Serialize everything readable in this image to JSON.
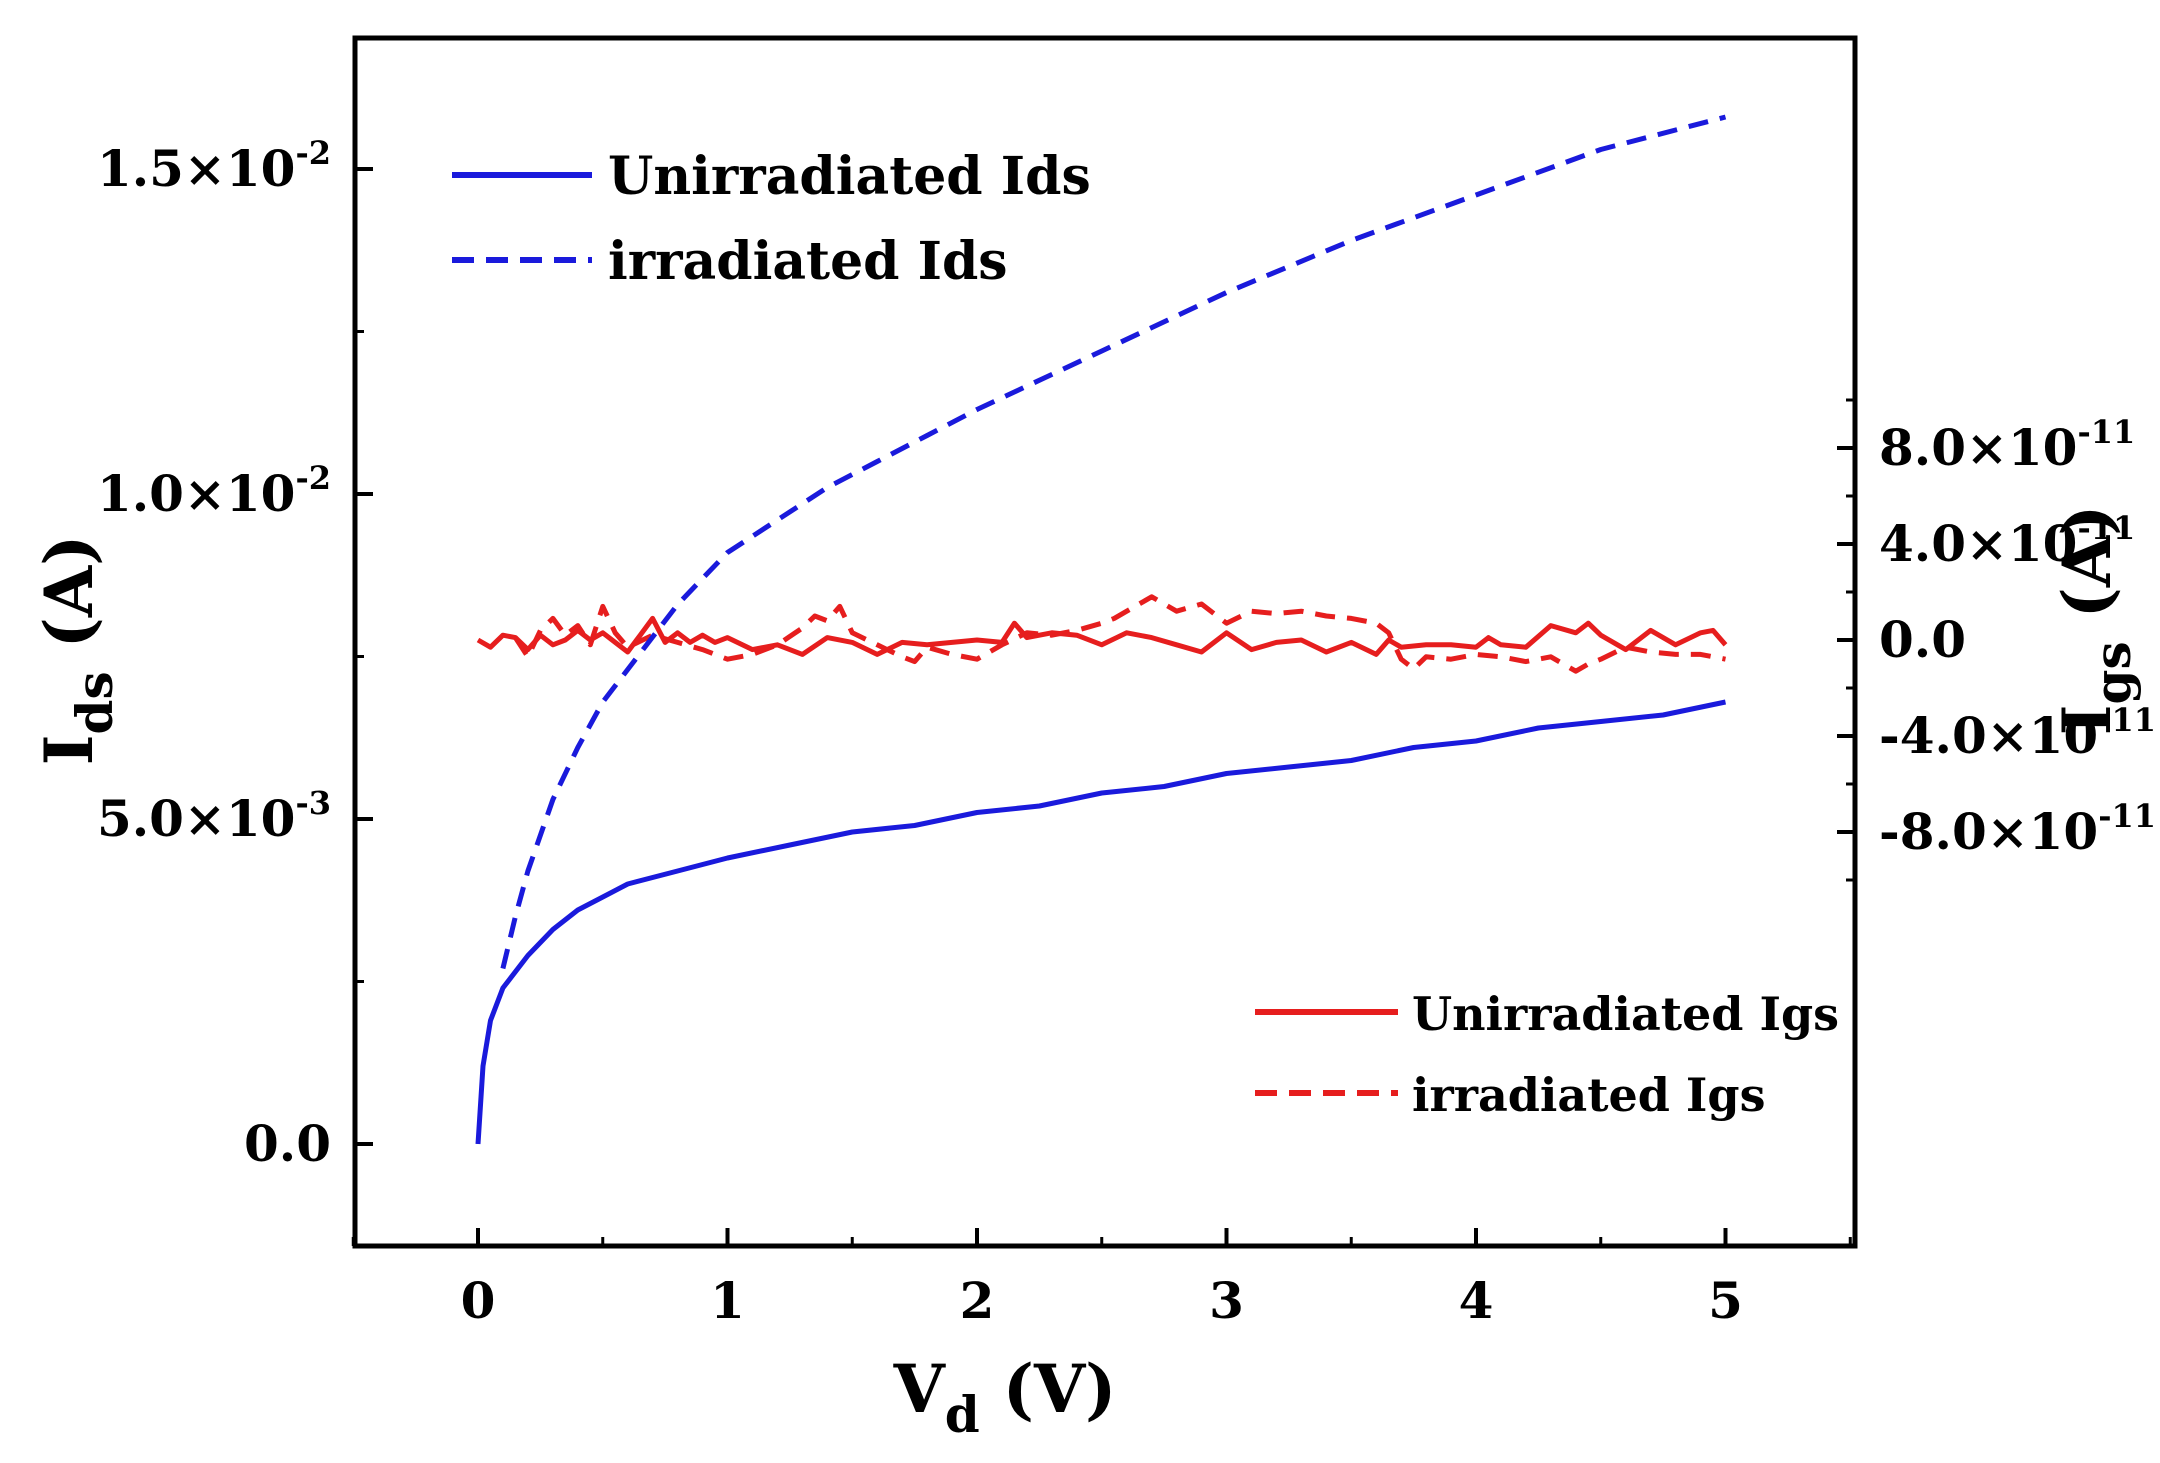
{
  "chart_data": {
    "type": "line",
    "xlabel": {
      "main": "V",
      "sub": "d",
      "unit": " (V)"
    },
    "ylabel_left": {
      "main": "I",
      "sub": "ds",
      "unit": " (A)"
    },
    "ylabel_right": {
      "main": "I",
      "sub": "gs",
      "unit": " (A)"
    },
    "xlim": [
      -0.5,
      5.5
    ],
    "ylim_left": [
      -0.0015,
      0.0169
    ],
    "ylim_right": [
      -1e-10,
      1.1e-10
    ],
    "grid": false,
    "x_ticks": [
      {
        "value": 0,
        "label": "0"
      },
      {
        "value": 1,
        "label": "1"
      },
      {
        "value": 2,
        "label": "2"
      },
      {
        "value": 3,
        "label": "3"
      },
      {
        "value": 4,
        "label": "4"
      },
      {
        "value": 5,
        "label": "5"
      }
    ],
    "y_left_ticks": [
      {
        "value": 0,
        "mant": "0.0",
        "exp": ""
      },
      {
        "value": 0.005,
        "mant": "5.0×10",
        "exp": "-3"
      },
      {
        "value": 0.01,
        "mant": "1.0×10",
        "exp": "-2"
      },
      {
        "value": 0.015,
        "mant": "1.5×10",
        "exp": "-2"
      }
    ],
    "y_right_ticks": [
      {
        "value": -8e-11,
        "mant": "-8.0×10",
        "exp": "-11"
      },
      {
        "value": -4e-11,
        "mant": "-4.0×10",
        "exp": "-11"
      },
      {
        "value": 0,
        "mant": "0.0",
        "exp": ""
      },
      {
        "value": 4e-11,
        "mant": "4.0×10",
        "exp": "-11"
      },
      {
        "value": 8e-11,
        "mant": "8.0×10",
        "exp": "-11"
      }
    ],
    "legend_top_left": [
      "Unirradiated Ids",
      "irradiated Ids"
    ],
    "legend_bottom_right": [
      "Unirradiated Igs",
      "irradiated Igs"
    ],
    "series": [
      {
        "name": "Unirradiated Ids",
        "axis": "left",
        "color": "#1a1adc",
        "dash": "solid",
        "x": [
          0,
          0.02,
          0.05,
          0.1,
          0.2,
          0.3,
          0.4,
          0.5,
          0.6,
          0.8,
          1.0,
          1.25,
          1.5,
          1.75,
          2.0,
          2.25,
          2.5,
          2.75,
          3.0,
          3.25,
          3.5,
          3.75,
          4.0,
          4.25,
          4.5,
          4.75,
          5.0
        ],
        "y": [
          0,
          0.0012,
          0.0019,
          0.0024,
          0.0029,
          0.0033,
          0.0036,
          0.0038,
          0.004,
          0.0042,
          0.0044,
          0.0046,
          0.0048,
          0.0049,
          0.0051,
          0.0052,
          0.0054,
          0.0055,
          0.0057,
          0.0058,
          0.0059,
          0.0061,
          0.0062,
          0.0064,
          0.0065,
          0.0066,
          0.0068
        ]
      },
      {
        "name": "irradiated Ids",
        "axis": "left",
        "color": "#1a1adc",
        "dash": "dashed",
        "x": [
          0.1,
          0.15,
          0.2,
          0.3,
          0.4,
          0.5,
          0.6,
          0.7,
          0.8,
          0.9,
          1.0,
          1.2,
          1.4,
          1.6,
          1.8,
          2.0,
          2.5,
          3.0,
          3.5,
          4.0,
          4.5,
          5.0
        ],
        "y": [
          0.0027,
          0.0035,
          0.0042,
          0.0053,
          0.0061,
          0.0068,
          0.0073,
          0.0078,
          0.0083,
          0.0087,
          0.0091,
          0.0096,
          0.0101,
          0.0105,
          0.0109,
          0.0113,
          0.0122,
          0.0131,
          0.0139,
          0.0146,
          0.0153,
          0.0158
        ]
      },
      {
        "name": "Unirradiated Igs",
        "axis": "right",
        "color": "#e61e1e",
        "dash": "solid",
        "x": [
          0,
          0.05,
          0.1,
          0.15,
          0.2,
          0.25,
          0.3,
          0.35,
          0.4,
          0.45,
          0.5,
          0.55,
          0.6,
          0.65,
          0.7,
          0.75,
          0.8,
          0.85,
          0.9,
          0.95,
          1.0,
          1.1,
          1.2,
          1.3,
          1.4,
          1.5,
          1.6,
          1.7,
          1.8,
          1.9,
          2.0,
          2.1,
          2.15,
          2.2,
          2.3,
          2.4,
          2.5,
          2.6,
          2.7,
          2.8,
          2.9,
          3.0,
          3.1,
          3.2,
          3.3,
          3.4,
          3.5,
          3.6,
          3.65,
          3.7,
          3.8,
          3.9,
          4.0,
          4.05,
          4.1,
          4.2,
          4.3,
          4.4,
          4.45,
          4.5,
          4.6,
          4.7,
          4.8,
          4.9,
          4.95,
          5.0
        ],
        "y": [
          0,
          -3e-12,
          2e-12,
          1e-12,
          -4e-12,
          2e-12,
          -2e-12,
          0,
          4e-12,
          0,
          3e-12,
          -1e-12,
          -5e-12,
          2e-12,
          9e-12,
          -1e-12,
          3e-12,
          -1e-12,
          2e-12,
          -1e-12,
          1e-12,
          -4e-12,
          -2e-12,
          -6e-12,
          1e-12,
          -1e-12,
          -6e-12,
          -1e-12,
          -2e-12,
          -1e-12,
          0,
          -1e-12,
          7e-12,
          1e-12,
          3e-12,
          2e-12,
          -2e-12,
          3e-12,
          1e-12,
          -2e-12,
          -5e-12,
          3e-12,
          -4e-12,
          -1e-12,
          0,
          -5e-12,
          -1e-12,
          -6e-12,
          0,
          -3e-12,
          -2e-12,
          -2e-12,
          -3e-12,
          1e-12,
          -2e-12,
          -3e-12,
          6e-12,
          3e-12,
          7e-12,
          2e-12,
          -4e-12,
          4e-12,
          -2e-12,
          3e-12,
          4e-12,
          -2e-12
        ]
      },
      {
        "name": "irradiated Igs",
        "axis": "right",
        "color": "#e61e1e",
        "dash": "dashed",
        "x": [
          0.15,
          0.2,
          0.25,
          0.3,
          0.35,
          0.4,
          0.45,
          0.5,
          0.55,
          0.6,
          0.7,
          0.8,
          0.9,
          1.0,
          1.1,
          1.2,
          1.3,
          1.35,
          1.4,
          1.45,
          1.5,
          1.6,
          1.7,
          1.75,
          1.8,
          1.9,
          2.0,
          2.1,
          2.2,
          2.3,
          2.4,
          2.5,
          2.55,
          2.6,
          2.7,
          2.8,
          2.9,
          3.0,
          3.1,
          3.2,
          3.3,
          3.4,
          3.5,
          3.6,
          3.65,
          3.7,
          3.75,
          3.8,
          3.9,
          4.0,
          4.1,
          4.2,
          4.3,
          4.4,
          4.45,
          4.5,
          4.6,
          4.7,
          4.8,
          4.9,
          5.0
        ],
        "y": [
          1e-12,
          -7e-12,
          4e-12,
          9e-12,
          2e-12,
          6e-12,
          -2e-12,
          1.4e-11,
          3e-12,
          -3e-12,
          2e-12,
          -1e-12,
          -4e-12,
          -8e-12,
          -6e-12,
          -2e-12,
          5e-12,
          1e-11,
          8e-12,
          1.4e-11,
          3e-12,
          -2e-12,
          -7e-12,
          -9e-12,
          -3e-12,
          -6e-12,
          -8e-12,
          -2e-12,
          3e-12,
          2e-12,
          4e-12,
          7e-12,
          9e-12,
          1.2e-11,
          1.8e-11,
          1.2e-11,
          1.5e-11,
          7e-12,
          1.2e-11,
          1.1e-11,
          1.2e-11,
          1e-11,
          9e-12,
          7e-12,
          3e-12,
          -8e-12,
          -1.2e-11,
          -7e-12,
          -8e-12,
          -6e-12,
          -7e-12,
          -9e-12,
          -7e-12,
          -1.3e-11,
          -1e-11,
          -8e-12,
          -3e-12,
          -5e-12,
          -6e-12,
          -6e-12,
          -8e-12
        ]
      }
    ]
  }
}
